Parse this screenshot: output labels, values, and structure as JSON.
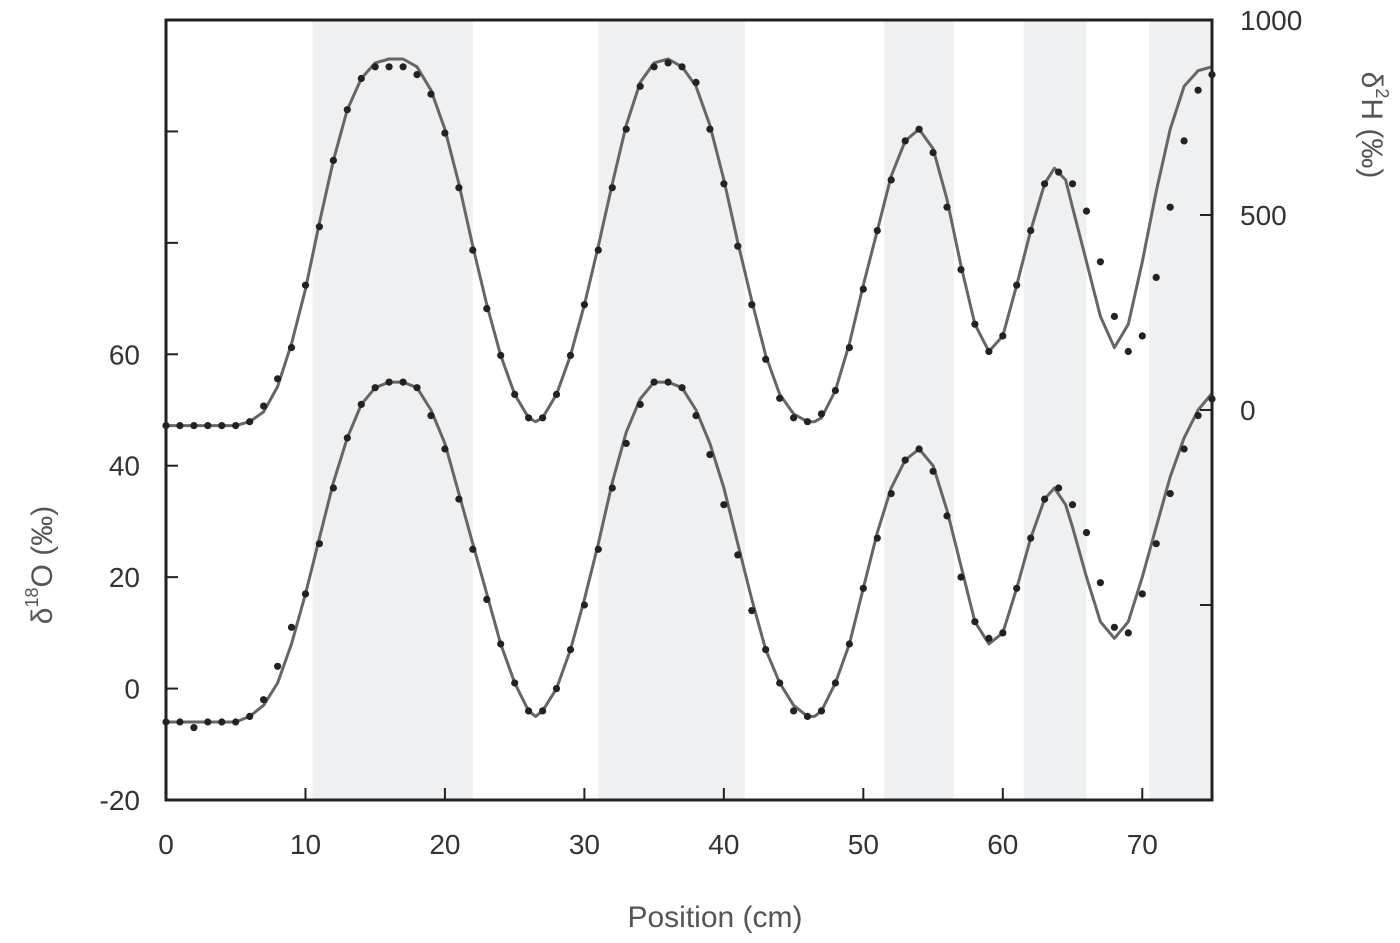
{
  "chart_data": {
    "type": "line",
    "title": "",
    "xlabel": "Position (cm)",
    "ylabel_left": {
      "prefix": "δ",
      "sup": "18",
      "main": "O (‰)"
    },
    "ylabel_right": {
      "prefix": "δ",
      "sup": "2",
      "main": "H (‰)"
    },
    "xlim": [
      0,
      75
    ],
    "ylim_left": [
      -20,
      120
    ],
    "ylim_right": [
      -1000,
      1000
    ],
    "x_ticks": [
      0,
      10,
      20,
      30,
      40,
      50,
      60,
      70
    ],
    "x_tick_labels": [
      "0",
      "10",
      "20",
      "30",
      "40",
      "50",
      "60",
      "70"
    ],
    "y_left_ticks": [
      -20,
      0,
      20,
      40,
      60,
      80,
      100
    ],
    "y_left_tick_labels": [
      "-20",
      "0",
      "20",
      "40",
      "60",
      "",
      ""
    ],
    "y_right_ticks": [
      -500,
      0,
      500,
      1000
    ],
    "y_right_tick_labels": [
      "",
      "0",
      "500",
      "1000"
    ],
    "shaded_bands": [
      [
        10.5,
        22
      ],
      [
        31,
        41.5
      ],
      [
        51.5,
        56.5
      ],
      [
        61.5,
        66
      ],
      [
        70.5,
        75
      ]
    ],
    "colors": {
      "band": "#eef0f2",
      "fit_line": "#666666",
      "points": "#222222",
      "axis": "#222222"
    },
    "series": [
      {
        "axis": "left",
        "fit": {
          "x": [
            0,
            5,
            6,
            7,
            8,
            9,
            10,
            11,
            12,
            13,
            14,
            15,
            16,
            17,
            18,
            19,
            20,
            21,
            22,
            23,
            24,
            25,
            26,
            26.5,
            27,
            28,
            29,
            30,
            31,
            32,
            33,
            34,
            35,
            36,
            37,
            38,
            39,
            40,
            41,
            42,
            43,
            44,
            45,
            46,
            46.5,
            47,
            48,
            49,
            50,
            51,
            52,
            53,
            54,
            55,
            56,
            57,
            58,
            59,
            60,
            61,
            62,
            63,
            63.7,
            64.5,
            65,
            66,
            67,
            68,
            69,
            70,
            71,
            72,
            73,
            74,
            75
          ],
          "y": [
            -6,
            -6,
            -5,
            -3,
            1,
            8,
            17,
            27,
            37,
            45,
            51,
            54,
            55,
            55,
            54,
            50,
            44,
            35,
            26,
            17,
            8,
            1,
            -4,
            -5,
            -4,
            0,
            7,
            16,
            26,
            37,
            46,
            52,
            55,
            55,
            54,
            50,
            44,
            36,
            26,
            16,
            7,
            1,
            -3,
            -5,
            -5,
            -4,
            1,
            8,
            18,
            28,
            36,
            41,
            43,
            40,
            32,
            22,
            12,
            8,
            10,
            18,
            27,
            34,
            36,
            33,
            29,
            20,
            12,
            9,
            12,
            20,
            29,
            38,
            45,
            50,
            53
          ]
        },
        "points": {
          "x": [
            0,
            1,
            2,
            3,
            4,
            5,
            6,
            7,
            8,
            9,
            10,
            11,
            12,
            13,
            14,
            15,
            16,
            17,
            18,
            19,
            20,
            21,
            22,
            23,
            24,
            25,
            26,
            27,
            28,
            29,
            30,
            31,
            32,
            33,
            34,
            35,
            36,
            37,
            38,
            39,
            40,
            41,
            42,
            43,
            44,
            45,
            46,
            47,
            48,
            49,
            50,
            51,
            52,
            53,
            54,
            55,
            56,
            57,
            58,
            59,
            60,
            61,
            62,
            63,
            64,
            65,
            66,
            67,
            68,
            69,
            70,
            71,
            72,
            73,
            74,
            75
          ],
          "y": [
            -6,
            -6,
            -7,
            -6,
            -6,
            -6,
            -5,
            -2,
            4,
            11,
            17,
            26,
            36,
            45,
            51,
            54,
            55,
            55,
            54,
            49,
            43,
            34,
            25,
            16,
            8,
            1,
            -4,
            -4,
            0,
            7,
            15,
            25,
            36,
            44,
            51,
            55,
            55,
            54,
            49,
            42,
            33,
            24,
            14,
            7,
            1,
            -4,
            -5,
            -4,
            1,
            8,
            18,
            27,
            35,
            41,
            43,
            39,
            31,
            20,
            12,
            9,
            10,
            18,
            27,
            34,
            36,
            33,
            28,
            19,
            11,
            10,
            17,
            26,
            35,
            43,
            49,
            52
          ]
        }
      },
      {
        "axis": "right",
        "fit": {
          "x": [
            0,
            5,
            6,
            7,
            8,
            9,
            10,
            11,
            12,
            13,
            14,
            15,
            16,
            17,
            18,
            19,
            20,
            21,
            22,
            23,
            24,
            25,
            26,
            26.5,
            27,
            28,
            29,
            30,
            31,
            32,
            33,
            34,
            35,
            36,
            37,
            38,
            39,
            40,
            41,
            42,
            43,
            44,
            45,
            46,
            46.5,
            47,
            48,
            49,
            50,
            51,
            52,
            53,
            54,
            55,
            56,
            57,
            58,
            59,
            60,
            61,
            62,
            63,
            63.7,
            64.5,
            65,
            66,
            67,
            68,
            69,
            70,
            71,
            72,
            73,
            74,
            75
          ],
          "y": [
            -40,
            -40,
            -30,
            -5,
            60,
            170,
            310,
            480,
            640,
            770,
            850,
            890,
            900,
            900,
            880,
            820,
            720,
            580,
            420,
            270,
            140,
            40,
            -20,
            -30,
            -20,
            40,
            140,
            270,
            420,
            580,
            730,
            840,
            890,
            900,
            880,
            830,
            730,
            590,
            430,
            280,
            140,
            40,
            -10,
            -30,
            -30,
            -20,
            50,
            170,
            320,
            460,
            600,
            690,
            720,
            670,
            540,
            370,
            220,
            150,
            190,
            320,
            460,
            580,
            620,
            590,
            520,
            380,
            240,
            160,
            220,
            380,
            560,
            720,
            830,
            870,
            880
          ]
        },
        "points": {
          "x": [
            0,
            1,
            2,
            3,
            4,
            5,
            6,
            7,
            8,
            9,
            10,
            11,
            12,
            13,
            14,
            15,
            16,
            17,
            18,
            19,
            20,
            21,
            22,
            23,
            24,
            25,
            26,
            27,
            28,
            29,
            30,
            31,
            32,
            33,
            34,
            35,
            36,
            37,
            38,
            39,
            40,
            41,
            42,
            43,
            44,
            45,
            46,
            47,
            48,
            49,
            50,
            51,
            52,
            53,
            54,
            55,
            56,
            57,
            58,
            59,
            60,
            61,
            62,
            63,
            64,
            65,
            66,
            67,
            68,
            69,
            70,
            71,
            72,
            73,
            74,
            75
          ],
          "y": [
            -40,
            -40,
            -40,
            -40,
            -40,
            -40,
            -30,
            10,
            80,
            160,
            320,
            470,
            640,
            770,
            850,
            880,
            880,
            880,
            860,
            810,
            710,
            570,
            410,
            260,
            140,
            40,
            -20,
            -20,
            40,
            140,
            270,
            410,
            570,
            720,
            830,
            880,
            890,
            880,
            840,
            720,
            580,
            420,
            270,
            130,
            30,
            -20,
            -30,
            -10,
            50,
            160,
            310,
            460,
            590,
            690,
            720,
            660,
            520,
            360,
            220,
            150,
            190,
            320,
            460,
            580,
            610,
            580,
            510,
            380,
            240,
            150,
            190,
            340,
            520,
            690,
            820,
            860
          ]
        }
      }
    ]
  }
}
